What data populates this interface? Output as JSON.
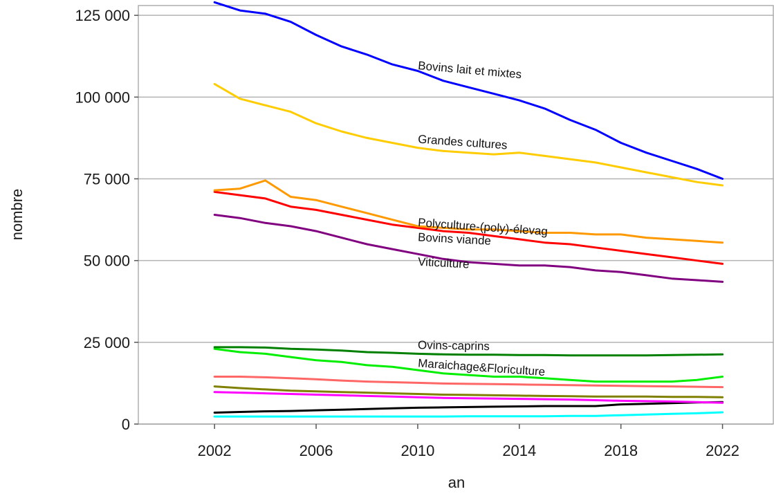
{
  "chart_data": {
    "type": "line",
    "xlabel": "an",
    "ylabel": "nombre",
    "xlim": [
      1999,
      2024
    ],
    "ylim": [
      0,
      128000
    ],
    "x_ticks": [
      2002,
      2006,
      2010,
      2014,
      2018,
      2022
    ],
    "x_tick_labels": [
      "2002",
      "2006",
      "2010",
      "2014",
      "2018",
      "2022"
    ],
    "y_ticks": [
      0,
      25000,
      50000,
      75000,
      100000,
      125000
    ],
    "y_tick_labels": [
      "0",
      "25 000",
      "50 000",
      "75 000",
      "100 000",
      "125 000"
    ],
    "grid": "horizontal",
    "x": [
      2002,
      2003,
      2004,
      2005,
      2006,
      2007,
      2008,
      2009,
      2010,
      2011,
      2012,
      2013,
      2014,
      2015,
      2016,
      2017,
      2018,
      2019,
      2020,
      2021,
      2022
    ],
    "series": [
      {
        "name": "Bovins lait et mixtes",
        "color": "#0000ff",
        "label_x": 2010,
        "label_y": 108500,
        "label_angle": 5,
        "values": [
          129000,
          126500,
          125500,
          123000,
          119000,
          115500,
          113000,
          110000,
          108000,
          105000,
          103000,
          101000,
          99000,
          96500,
          93000,
          90000,
          86000,
          83000,
          80500,
          78000,
          75000
        ]
      },
      {
        "name": "Grandes cultures",
        "color": "#ffcc00",
        "label_x": 2010,
        "label_y": 86000,
        "label_angle": 4,
        "values": [
          104000,
          99500,
          97500,
          95500,
          92000,
          89500,
          87500,
          86000,
          84500,
          83500,
          83000,
          82500,
          83000,
          82000,
          81000,
          80000,
          78500,
          77000,
          75500,
          74000,
          73000
        ]
      },
      {
        "name": "Polyculture-(poly)-élevag",
        "color": "#ff9900",
        "label_x": 2010,
        "label_y": 60500,
        "label_angle": 4,
        "values": [
          71500,
          72000,
          74500,
          69500,
          68500,
          66500,
          64500,
          62500,
          60500,
          60000,
          59500,
          59500,
          59000,
          58500,
          58500,
          58000,
          58000,
          57000,
          56500,
          56000,
          55500
        ]
      },
      {
        "name": "Bovins viande",
        "color": "#ff0000",
        "label_x": 2010,
        "label_y": 56000,
        "label_angle": 3,
        "values": [
          71000,
          70000,
          69000,
          66500,
          65500,
          64000,
          62500,
          61000,
          60000,
          59000,
          58500,
          57500,
          56500,
          55500,
          55000,
          54000,
          53000,
          52000,
          51000,
          50000,
          49000
        ]
      },
      {
        "name": "Viticulture",
        "color": "#800080",
        "label_x": 2010,
        "label_y": 48500,
        "label_angle": 3,
        "values": [
          64000,
          63000,
          61500,
          60500,
          59000,
          57000,
          55000,
          53500,
          52000,
          50500,
          49500,
          49000,
          48500,
          48500,
          48000,
          47000,
          46500,
          45500,
          44500,
          44000,
          43500
        ]
      },
      {
        "name": "Ovins-caprins",
        "color": "#008000",
        "label_x": 2010,
        "label_y": 23000,
        "label_angle": 1,
        "values": [
          23500,
          23500,
          23400,
          23000,
          22800,
          22500,
          22000,
          21800,
          21500,
          21300,
          21200,
          21200,
          21100,
          21100,
          21000,
          21000,
          21000,
          21000,
          21100,
          21200,
          21300
        ]
      },
      {
        "name": "Maraichage&Floriculture",
        "color": "#00ee00",
        "label_x": 2010,
        "label_y": 17500,
        "label_angle": 4,
        "values": [
          23000,
          22000,
          21500,
          20500,
          19500,
          19000,
          18000,
          17500,
          16500,
          15500,
          15000,
          14500,
          14500,
          14000,
          13500,
          13000,
          13000,
          13000,
          13000,
          13500,
          14500
        ]
      },
      {
        "name": "",
        "color": "#ff6666",
        "values": [
          14500,
          14500,
          14300,
          14000,
          13700,
          13300,
          13000,
          12800,
          12600,
          12400,
          12300,
          12200,
          12100,
          12000,
          11900,
          11800,
          11700,
          11600,
          11500,
          11400,
          11300
        ]
      },
      {
        "name": "",
        "color": "#808000",
        "values": [
          11500,
          11000,
          10600,
          10200,
          10000,
          9800,
          9600,
          9400,
          9200,
          9000,
          8900,
          8800,
          8700,
          8600,
          8500,
          8400,
          8400,
          8400,
          8300,
          8300,
          8200
        ]
      },
      {
        "name": "",
        "color": "#ff00ff",
        "values": [
          9800,
          9600,
          9400,
          9200,
          9000,
          8800,
          8600,
          8400,
          8200,
          8000,
          7900,
          7800,
          7700,
          7600,
          7500,
          7300,
          7100,
          7000,
          6900,
          6700,
          6500
        ]
      },
      {
        "name": "",
        "color": "#000000",
        "values": [
          3500,
          3700,
          3900,
          4000,
          4200,
          4400,
          4600,
          4800,
          5000,
          5100,
          5200,
          5300,
          5400,
          5500,
          5500,
          5500,
          6000,
          6200,
          6400,
          6600,
          6700
        ]
      },
      {
        "name": "",
        "color": "#00ffff",
        "values": [
          2300,
          2300,
          2300,
          2300,
          2300,
          2300,
          2300,
          2300,
          2300,
          2300,
          2400,
          2400,
          2400,
          2400,
          2500,
          2500,
          2700,
          2900,
          3100,
          3300,
          3600
        ]
      }
    ]
  }
}
